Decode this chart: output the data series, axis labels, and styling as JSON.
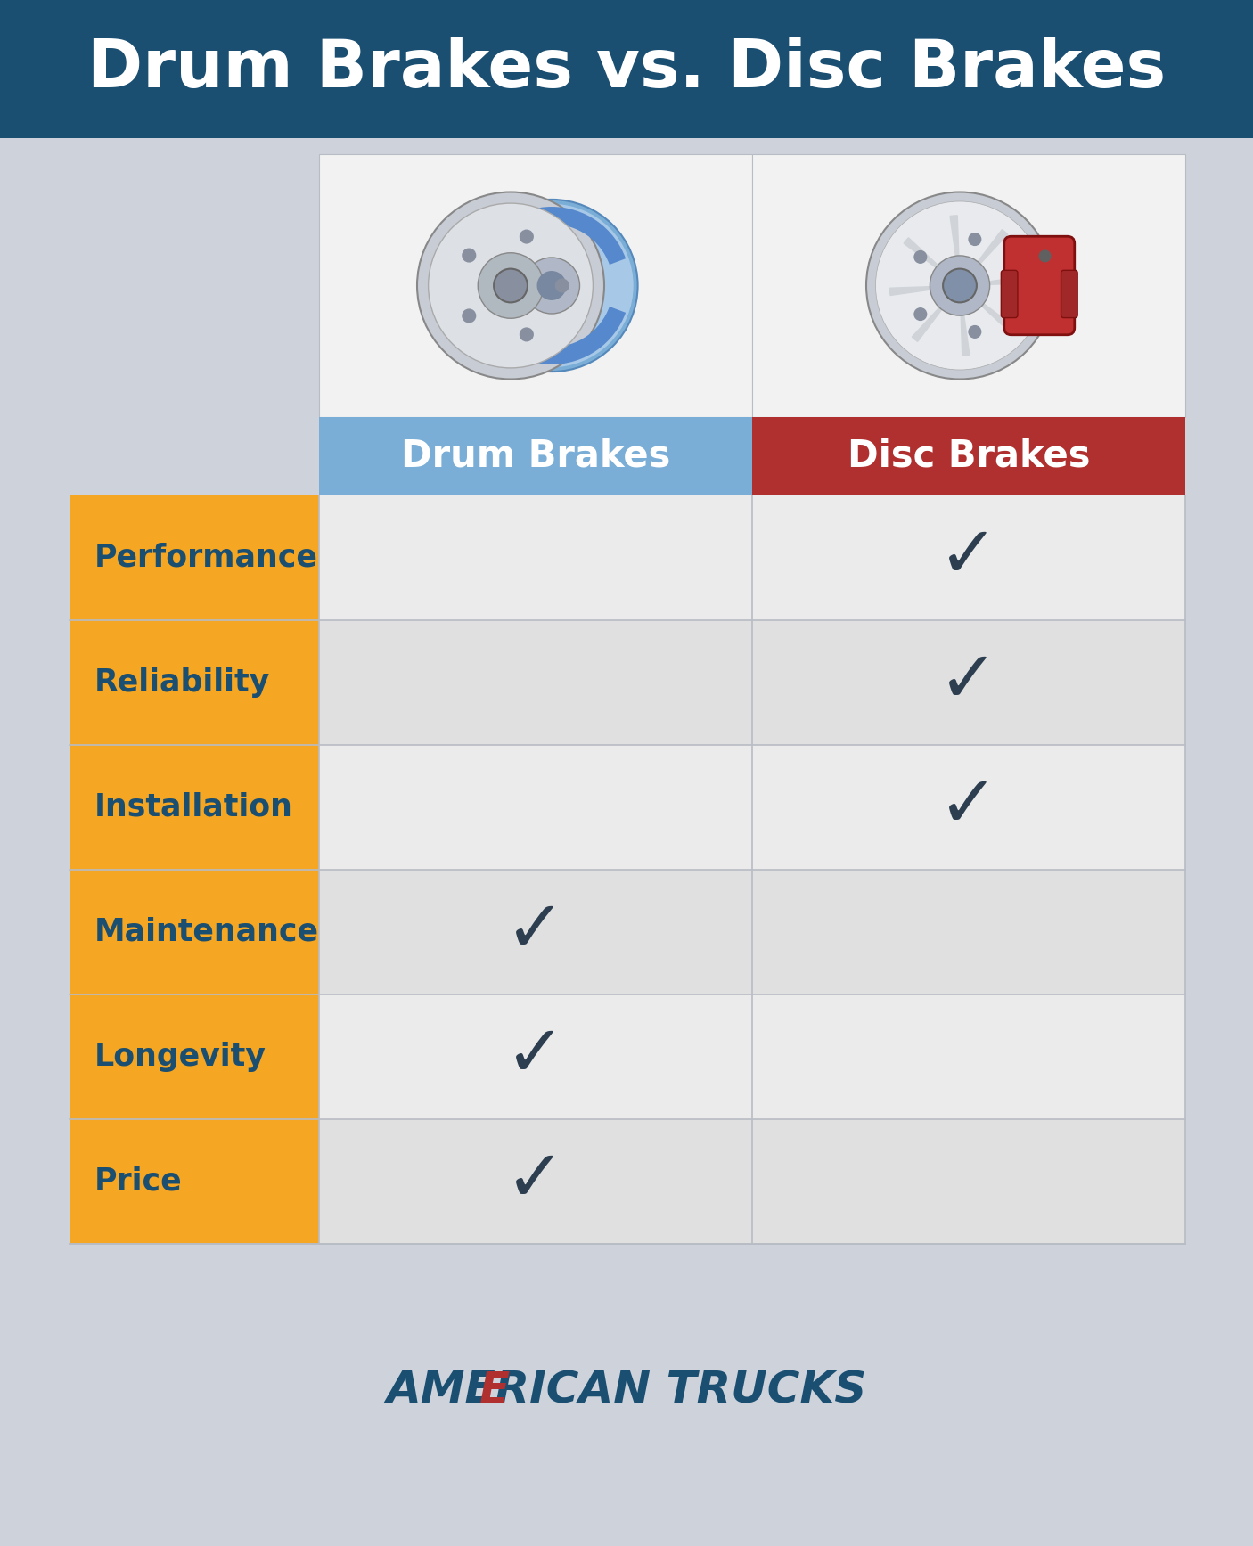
{
  "title": "Drum Brakes vs. Disc Brakes",
  "title_bg_color": "#1b4f72",
  "title_text_color": "#ffffff",
  "bg_color": "#cdd2db",
  "orange_color": "#f5a623",
  "blue_color": "#7aaed6",
  "red_color": "#b03030",
  "dark_blue_text": "#1b4f72",
  "check_color": "#2c3e50",
  "row_color_odd": "#ebebeb",
  "row_color_even": "#e0e0e0",
  "separator_color": "#b8bcc4",
  "rows": [
    "Performance",
    "Reliability",
    "Installation",
    "Maintenance",
    "Longevity",
    "Price"
  ],
  "drum_checks": [
    false,
    false,
    false,
    true,
    true,
    true
  ],
  "disc_checks": [
    true,
    true,
    true,
    false,
    false,
    false
  ],
  "col1_label": "Drum Brakes",
  "col2_label": "Disc Brakes",
  "footer_blue": "#1b4f72",
  "footer_red": "#b03030"
}
